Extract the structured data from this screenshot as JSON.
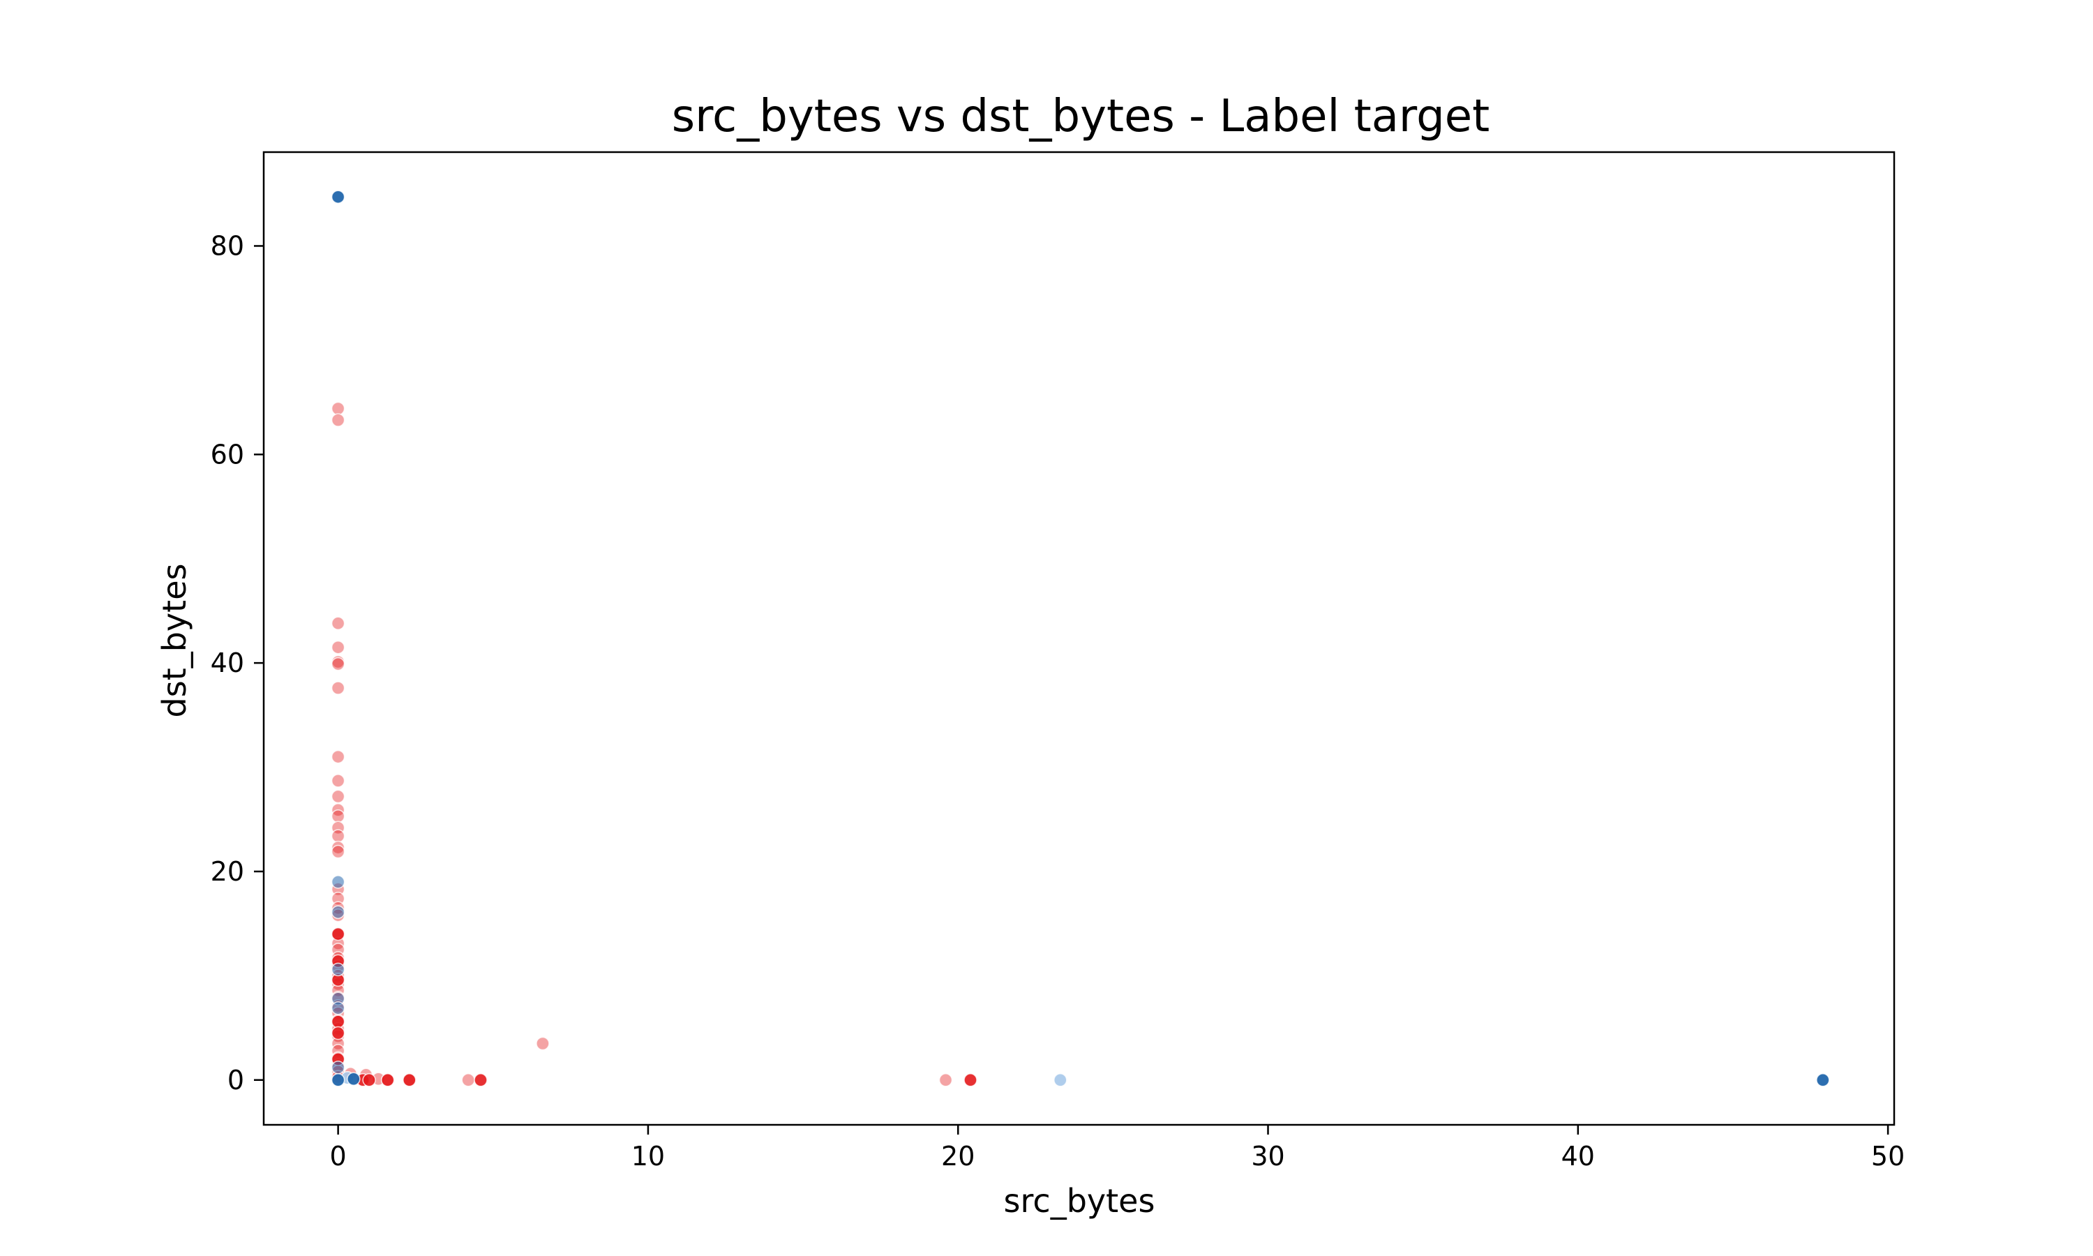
{
  "chart_data": {
    "type": "scatter",
    "title": "src_bytes vs dst_bytes - Label target",
    "xlabel": "src_bytes",
    "ylabel": "dst_bytes",
    "xlim": [
      -2.4,
      50.2
    ],
    "ylim": [
      -4.3,
      89.0
    ],
    "xticks": [
      0,
      10,
      20,
      30,
      40,
      50
    ],
    "yticks": [
      0,
      20,
      40,
      60,
      80
    ],
    "grid": false,
    "legend": "none",
    "series": [
      {
        "color": "#e41a1c",
        "opacity": 0.4,
        "points": [
          [
            0,
            64.4
          ],
          [
            0,
            63.3
          ],
          [
            0,
            43.8
          ],
          [
            0,
            41.5
          ],
          [
            0,
            40.1
          ],
          [
            0,
            39.9
          ],
          [
            0,
            37.6
          ],
          [
            0,
            31.0
          ],
          [
            0,
            28.7
          ],
          [
            0,
            27.2
          ],
          [
            0,
            25.9
          ],
          [
            0,
            25.3
          ],
          [
            0,
            24.2
          ],
          [
            0,
            23.4
          ],
          [
            0,
            22.3
          ],
          [
            0,
            21.9
          ],
          [
            0,
            18.3
          ],
          [
            0,
            17.4
          ],
          [
            0,
            16.5
          ],
          [
            0,
            15.8
          ],
          [
            0,
            13.9
          ],
          [
            0,
            13.1
          ],
          [
            0,
            12.5
          ],
          [
            0,
            11.7
          ],
          [
            0,
            10.9
          ],
          [
            0,
            10.0
          ],
          [
            0,
            9.2
          ],
          [
            0,
            8.6
          ],
          [
            0,
            7.9
          ],
          [
            0,
            7.1
          ],
          [
            0,
            6.4
          ],
          [
            0,
            5.7
          ],
          [
            0,
            4.9
          ],
          [
            0,
            4.2
          ],
          [
            0,
            3.5
          ],
          [
            0,
            2.8
          ],
          [
            0,
            2.1
          ],
          [
            0,
            1.4
          ],
          [
            0,
            0.8
          ],
          [
            0,
            0.3
          ],
          [
            0.4,
            0.6
          ],
          [
            0.9,
            0.5
          ],
          [
            1.3,
            0.1
          ],
          [
            1.6,
            0.0
          ],
          [
            2.3,
            0.0
          ],
          [
            4.2,
            0.0
          ],
          [
            6.6,
            3.5
          ],
          [
            19.6,
            0.0
          ]
        ]
      },
      {
        "color": "#e41a1c",
        "opacity": 0.9,
        "points": [
          [
            0,
            14.0
          ],
          [
            0,
            11.4
          ],
          [
            0,
            9.6
          ],
          [
            0,
            5.6
          ],
          [
            0,
            4.5
          ],
          [
            0,
            2.0
          ],
          [
            0.8,
            0.0
          ],
          [
            1.0,
            0.0
          ],
          [
            1.6,
            0.0
          ],
          [
            2.3,
            0.0
          ],
          [
            4.6,
            0.0
          ],
          [
            20.4,
            0.0
          ]
        ]
      },
      {
        "color": "#2b6cb0",
        "opacity": 0.55,
        "points": [
          [
            0,
            19.0
          ],
          [
            0,
            16.1
          ],
          [
            0,
            10.6
          ],
          [
            0,
            7.8
          ],
          [
            0,
            6.9
          ],
          [
            0,
            1.2
          ]
        ]
      },
      {
        "color": "#a6c8ea",
        "opacity": 0.9,
        "points": [
          [
            23.3,
            0.0
          ],
          [
            0.3,
            0.2
          ]
        ]
      },
      {
        "color": "#2166ac",
        "opacity": 0.95,
        "points": [
          [
            0,
            84.7
          ],
          [
            0,
            0.0
          ],
          [
            0.5,
            0.1
          ],
          [
            47.9,
            0.0
          ]
        ]
      }
    ]
  }
}
